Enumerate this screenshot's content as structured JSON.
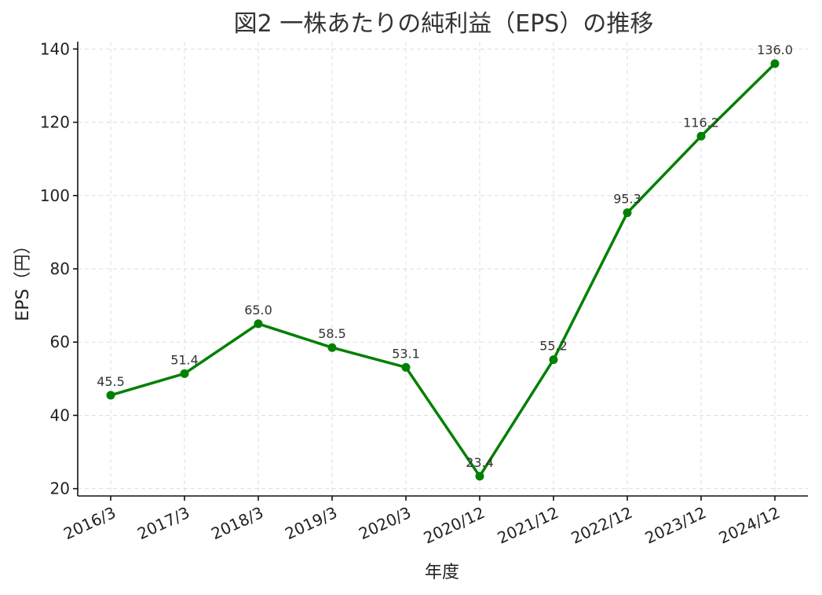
{
  "chart_data": {
    "type": "line",
    "title": "図2 一株あたりの純利益（EPS）の推移",
    "xlabel": "年度",
    "ylabel": "EPS（円）",
    "categories": [
      "2016/3",
      "2017/3",
      "2018/3",
      "2019/3",
      "2020/3",
      "2020/12",
      "2021/12",
      "2022/12",
      "2023/12",
      "2024/12"
    ],
    "series": [
      {
        "values": [
          45.5,
          51.4,
          65.0,
          58.5,
          53.1,
          23.4,
          55.2,
          95.3,
          116.2,
          136.0
        ],
        "labels": [
          "45.5",
          "51.4",
          "65.0",
          "58.5",
          "53.1",
          "23.4",
          "55.2",
          "95.3",
          "116.2",
          "136.0"
        ],
        "color": "#008000"
      }
    ],
    "yticks": [
      "20",
      "40",
      "60",
      "80",
      "100",
      "120",
      "140"
    ],
    "ylim": [
      18,
      142
    ],
    "grid": true
  }
}
